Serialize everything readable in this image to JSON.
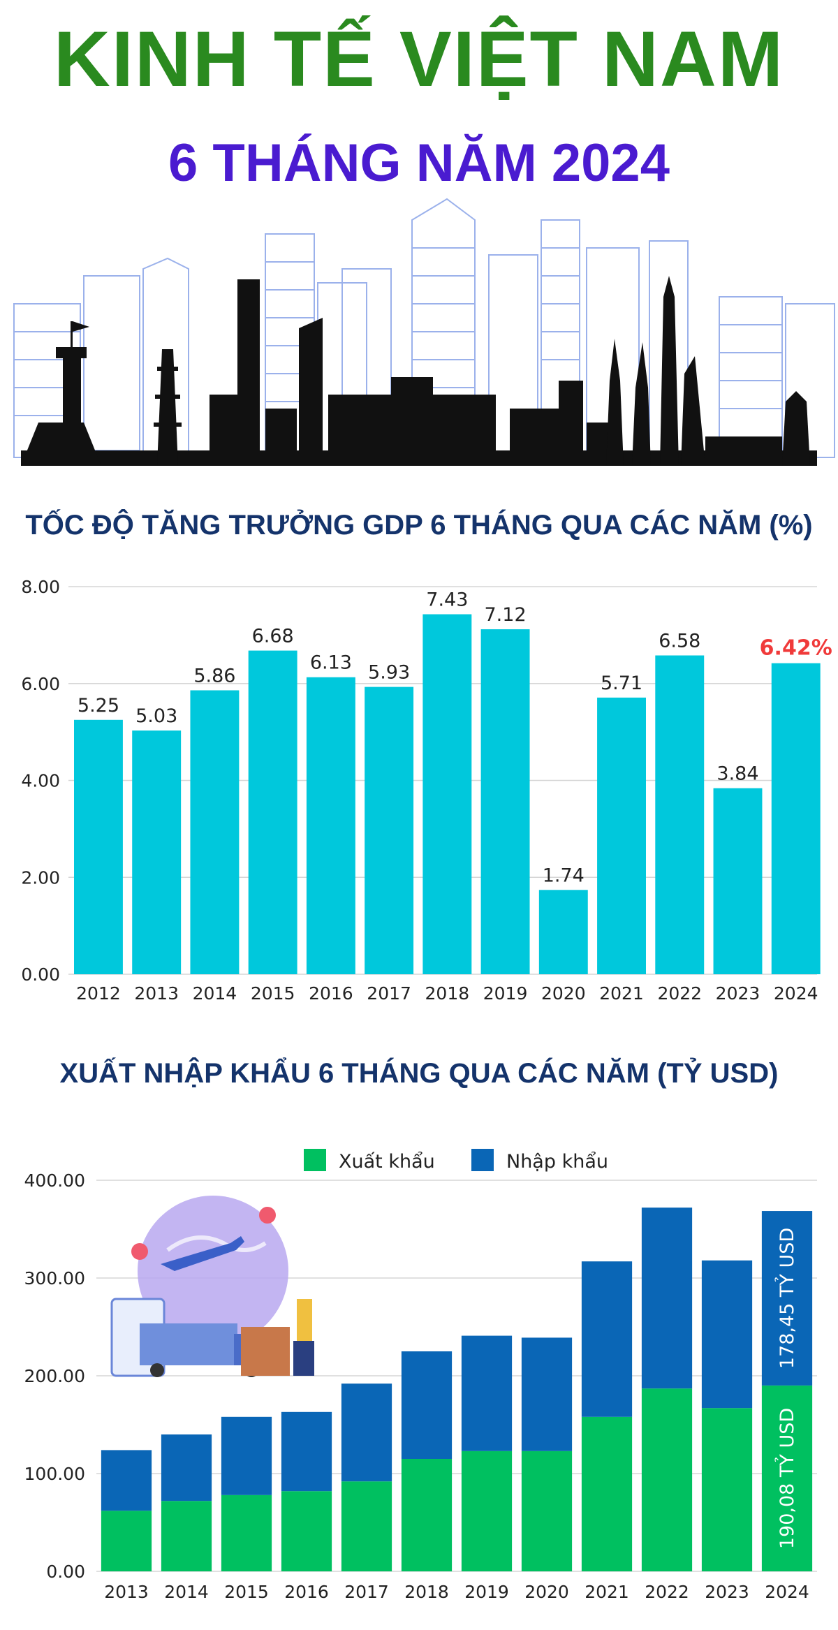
{
  "header": {
    "title": "KINH TẾ VIỆT NAM",
    "subtitle": "6 THÁNG NĂM 2024"
  },
  "chart_data": [
    {
      "type": "bar",
      "title": "TỐC ĐỘ TĂNG TRƯỞNG GDP 6 THÁNG QUA CÁC NĂM (%)",
      "categories": [
        "2012",
        "2013",
        "2014",
        "2015",
        "2016",
        "2017",
        "2018",
        "2019",
        "2020",
        "2021",
        "2022",
        "2023",
        "2024"
      ],
      "values": [
        5.25,
        5.03,
        5.86,
        6.68,
        6.13,
        5.93,
        7.43,
        7.12,
        1.74,
        5.71,
        6.58,
        3.84,
        6.42
      ],
      "value_labels": [
        "5.25",
        "5.03",
        "5.86",
        "6.68",
        "6.13",
        "5.93",
        "7.43",
        "7.12",
        "1.74",
        "5.71",
        "6.58",
        "3.84",
        "6.42%"
      ],
      "yticks": [
        "0.00",
        "2.00",
        "4.00",
        "6.00",
        "8.00"
      ],
      "ylim": [
        0,
        8
      ],
      "grid": true,
      "bar_color": "#00c8dc",
      "highlight_color": "#f03a3a"
    },
    {
      "type": "bar",
      "stacked": true,
      "title": "XUẤT NHẬP KHẨU 6 THÁNG QUA CÁC NĂM (TỶ USD)",
      "categories": [
        "2013",
        "2014",
        "2015",
        "2016",
        "2017",
        "2018",
        "2019",
        "2020",
        "2021",
        "2022",
        "2023",
        "2024"
      ],
      "series": [
        {
          "name": "Xuất khẩu",
          "color": "#00c060",
          "values": [
            62,
            72,
            78,
            82,
            92,
            115,
            123,
            123,
            158,
            187,
            167,
            190.08
          ]
        },
        {
          "name": "Nhập khẩu",
          "color": "#0a66b6",
          "values": [
            62,
            68,
            80,
            81,
            100,
            110,
            118,
            116,
            159,
            185,
            151,
            178.45
          ]
        }
      ],
      "yticks": [
        "0.00",
        "100.00",
        "200.00",
        "300.00",
        "400.00"
      ],
      "ylim": [
        0,
        400
      ],
      "grid": true,
      "legend": "top-center",
      "annotations": {
        "export_2024": "190,08 TỶ USD",
        "import_2024": "178,45 TỶ USD"
      }
    }
  ]
}
